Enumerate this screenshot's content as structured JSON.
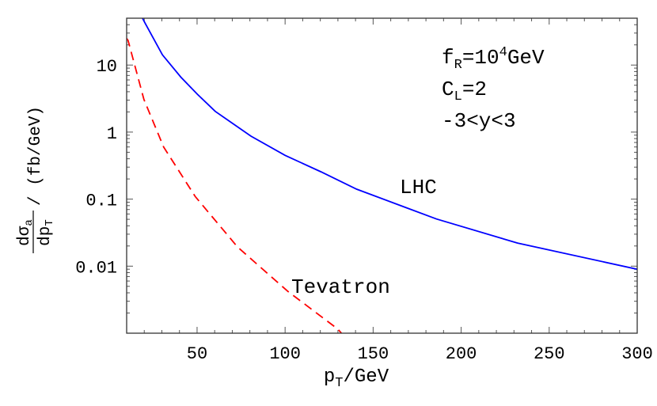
{
  "chart_data": {
    "type": "line",
    "title": "",
    "xlabel": "p_T / GeV",
    "ylabel": "dσ_a/dp_T / (fb/GeV)",
    "xlim": [
      10,
      300
    ],
    "ylim": [
      0.001,
      50
    ],
    "yscale": "log",
    "grid": false,
    "xticks": [
      50,
      100,
      150,
      200,
      250,
      300
    ],
    "yticks": [
      {
        "value": 10,
        "label": "10"
      },
      {
        "value": 1,
        "label": "1"
      },
      {
        "value": 0.1,
        "label": "0.1"
      },
      {
        "value": 0.01,
        "label": "0.01"
      }
    ],
    "series": [
      {
        "name": "LHC",
        "color": "#0000ff",
        "style": "solid",
        "x": [
          19,
          20.5,
          30.3,
          40.8,
          50.2,
          60.3,
          70,
          80.6,
          100,
          120.3,
          140.6,
          186,
          232,
          300
        ],
        "y": [
          50,
          42,
          14.2,
          6.6,
          3.67,
          2.04,
          1.36,
          0.87,
          0.45,
          0.256,
          0.141,
          0.0506,
          0.0221,
          0.009
        ]
      },
      {
        "name": "Tevatron",
        "color": "#ff0000",
        "style": "dashed",
        "x": [
          10,
          10.8,
          19.8,
          31,
          49,
          73,
          101.6,
          130,
          132
        ],
        "y": [
          25,
          23.3,
          3.07,
          0.6,
          0.109,
          0.0193,
          0.0042,
          0.00115,
          0.001
        ]
      }
    ],
    "annotations": {
      "lhc": "LHC",
      "tevatron": "Tevatron",
      "params": {
        "fR_base": "f",
        "fR_sub": "R",
        "fR_eq": "=10",
        "fR_exp": "4",
        "fR_unit": "GeV",
        "CL_base": "C",
        "CL_sub": "L",
        "CL_eq": "=2",
        "range": "-3<y<3"
      }
    },
    "axis_text": {
      "x_base": "p",
      "x_sub": "T",
      "x_rest": "/GeV",
      "y_num": "dσ",
      "y_num_sub": "a",
      "y_den": "dp",
      "y_den_sub": "T",
      "y_rest": "/ (fb/GeV)"
    }
  }
}
